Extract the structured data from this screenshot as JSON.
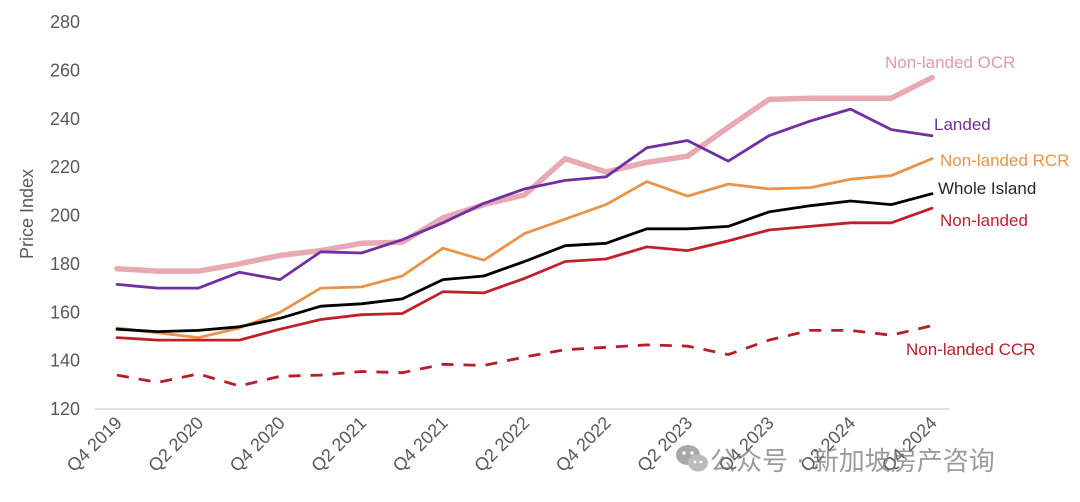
{
  "watermark": {
    "text": "公众号 · 新加坡房产咨询",
    "icon": "wechat-icon"
  },
  "chart_data": {
    "type": "line",
    "title": "",
    "xlabel": "",
    "ylabel": "Price Index",
    "ylim": [
      120,
      280
    ],
    "yticks": [
      120,
      140,
      160,
      180,
      200,
      220,
      240,
      260,
      280
    ],
    "grid": false,
    "legend": "direct labels at line ends (right)",
    "x": [
      "Q4 2019",
      "Q1 2020",
      "Q2 2020",
      "Q3 2020",
      "Q4 2020",
      "Q1 2021",
      "Q2 2021",
      "Q3 2021",
      "Q4 2021",
      "Q1 2022",
      "Q2 2022",
      "Q3 2022",
      "Q4 2022",
      "Q1 2023",
      "Q2 2023",
      "Q3 2023",
      "Q4 2023",
      "Q1 2024",
      "Q2 2024",
      "Q3 2024",
      "Q4 2024"
    ],
    "xtick_labels": [
      "Q4 2019",
      "Q2 2020",
      "Q4 2020",
      "Q2 2021",
      "Q4 2021",
      "Q2 2022",
      "Q4 2022",
      "Q2 2023",
      "Q4 2023",
      "Q2 2024",
      "Q4 2024"
    ],
    "series": [
      {
        "name": "Non-landed OCR",
        "color": "#e8a9b3",
        "style": "thick",
        "values": [
          178,
          177,
          177,
          180,
          183.5,
          185.5,
          188.5,
          189,
          199,
          204.5,
          208.5,
          223.5,
          218,
          222,
          224.5,
          236.5,
          248,
          248.5,
          248.5,
          248.5,
          257
        ]
      },
      {
        "name": "Landed",
        "color": "#7030a0",
        "style": "solid",
        "values": [
          171.5,
          170,
          170,
          176.5,
          173.5,
          185,
          184.5,
          190,
          197,
          205,
          211,
          214.5,
          216,
          228,
          231,
          222.5,
          233,
          239,
          244,
          235.5,
          233
        ]
      },
      {
        "name": "Non-landed RCR",
        "color": "#e8944a",
        "style": "solid",
        "values": [
          153.5,
          151.5,
          149.5,
          153.5,
          160,
          170,
          170.5,
          175,
          186.5,
          181.5,
          192.5,
          198.5,
          204.5,
          214,
          208,
          213,
          211,
          211.5,
          215,
          216.5,
          223.5
        ]
      },
      {
        "name": "Whole Island",
        "color": "#000000",
        "style": "solid",
        "values": [
          153,
          152,
          152.5,
          154,
          157.5,
          162.5,
          163.5,
          165.5,
          173.5,
          175,
          181,
          187.5,
          188.5,
          194.5,
          194.5,
          195.5,
          201.5,
          204,
          206,
          204.5,
          209
        ]
      },
      {
        "name": "Non-landed",
        "color": "#c0202a",
        "style": "solid",
        "values": [
          149.5,
          148.5,
          148.5,
          148.5,
          153,
          157,
          159,
          159.5,
          168.5,
          168,
          174,
          181,
          182,
          187,
          185.5,
          189.5,
          194,
          195.5,
          197,
          197,
          203
        ]
      },
      {
        "name": "Non-landed CCR",
        "color": "#b81e2a",
        "style": "dashed",
        "values": [
          134,
          131,
          134.5,
          129.5,
          133.5,
          134,
          135.5,
          135,
          138.5,
          138,
          141.5,
          144.5,
          145.5,
          146.5,
          146,
          142.5,
          148.5,
          152.5,
          152.5,
          150.5,
          154.5
        ]
      }
    ]
  }
}
